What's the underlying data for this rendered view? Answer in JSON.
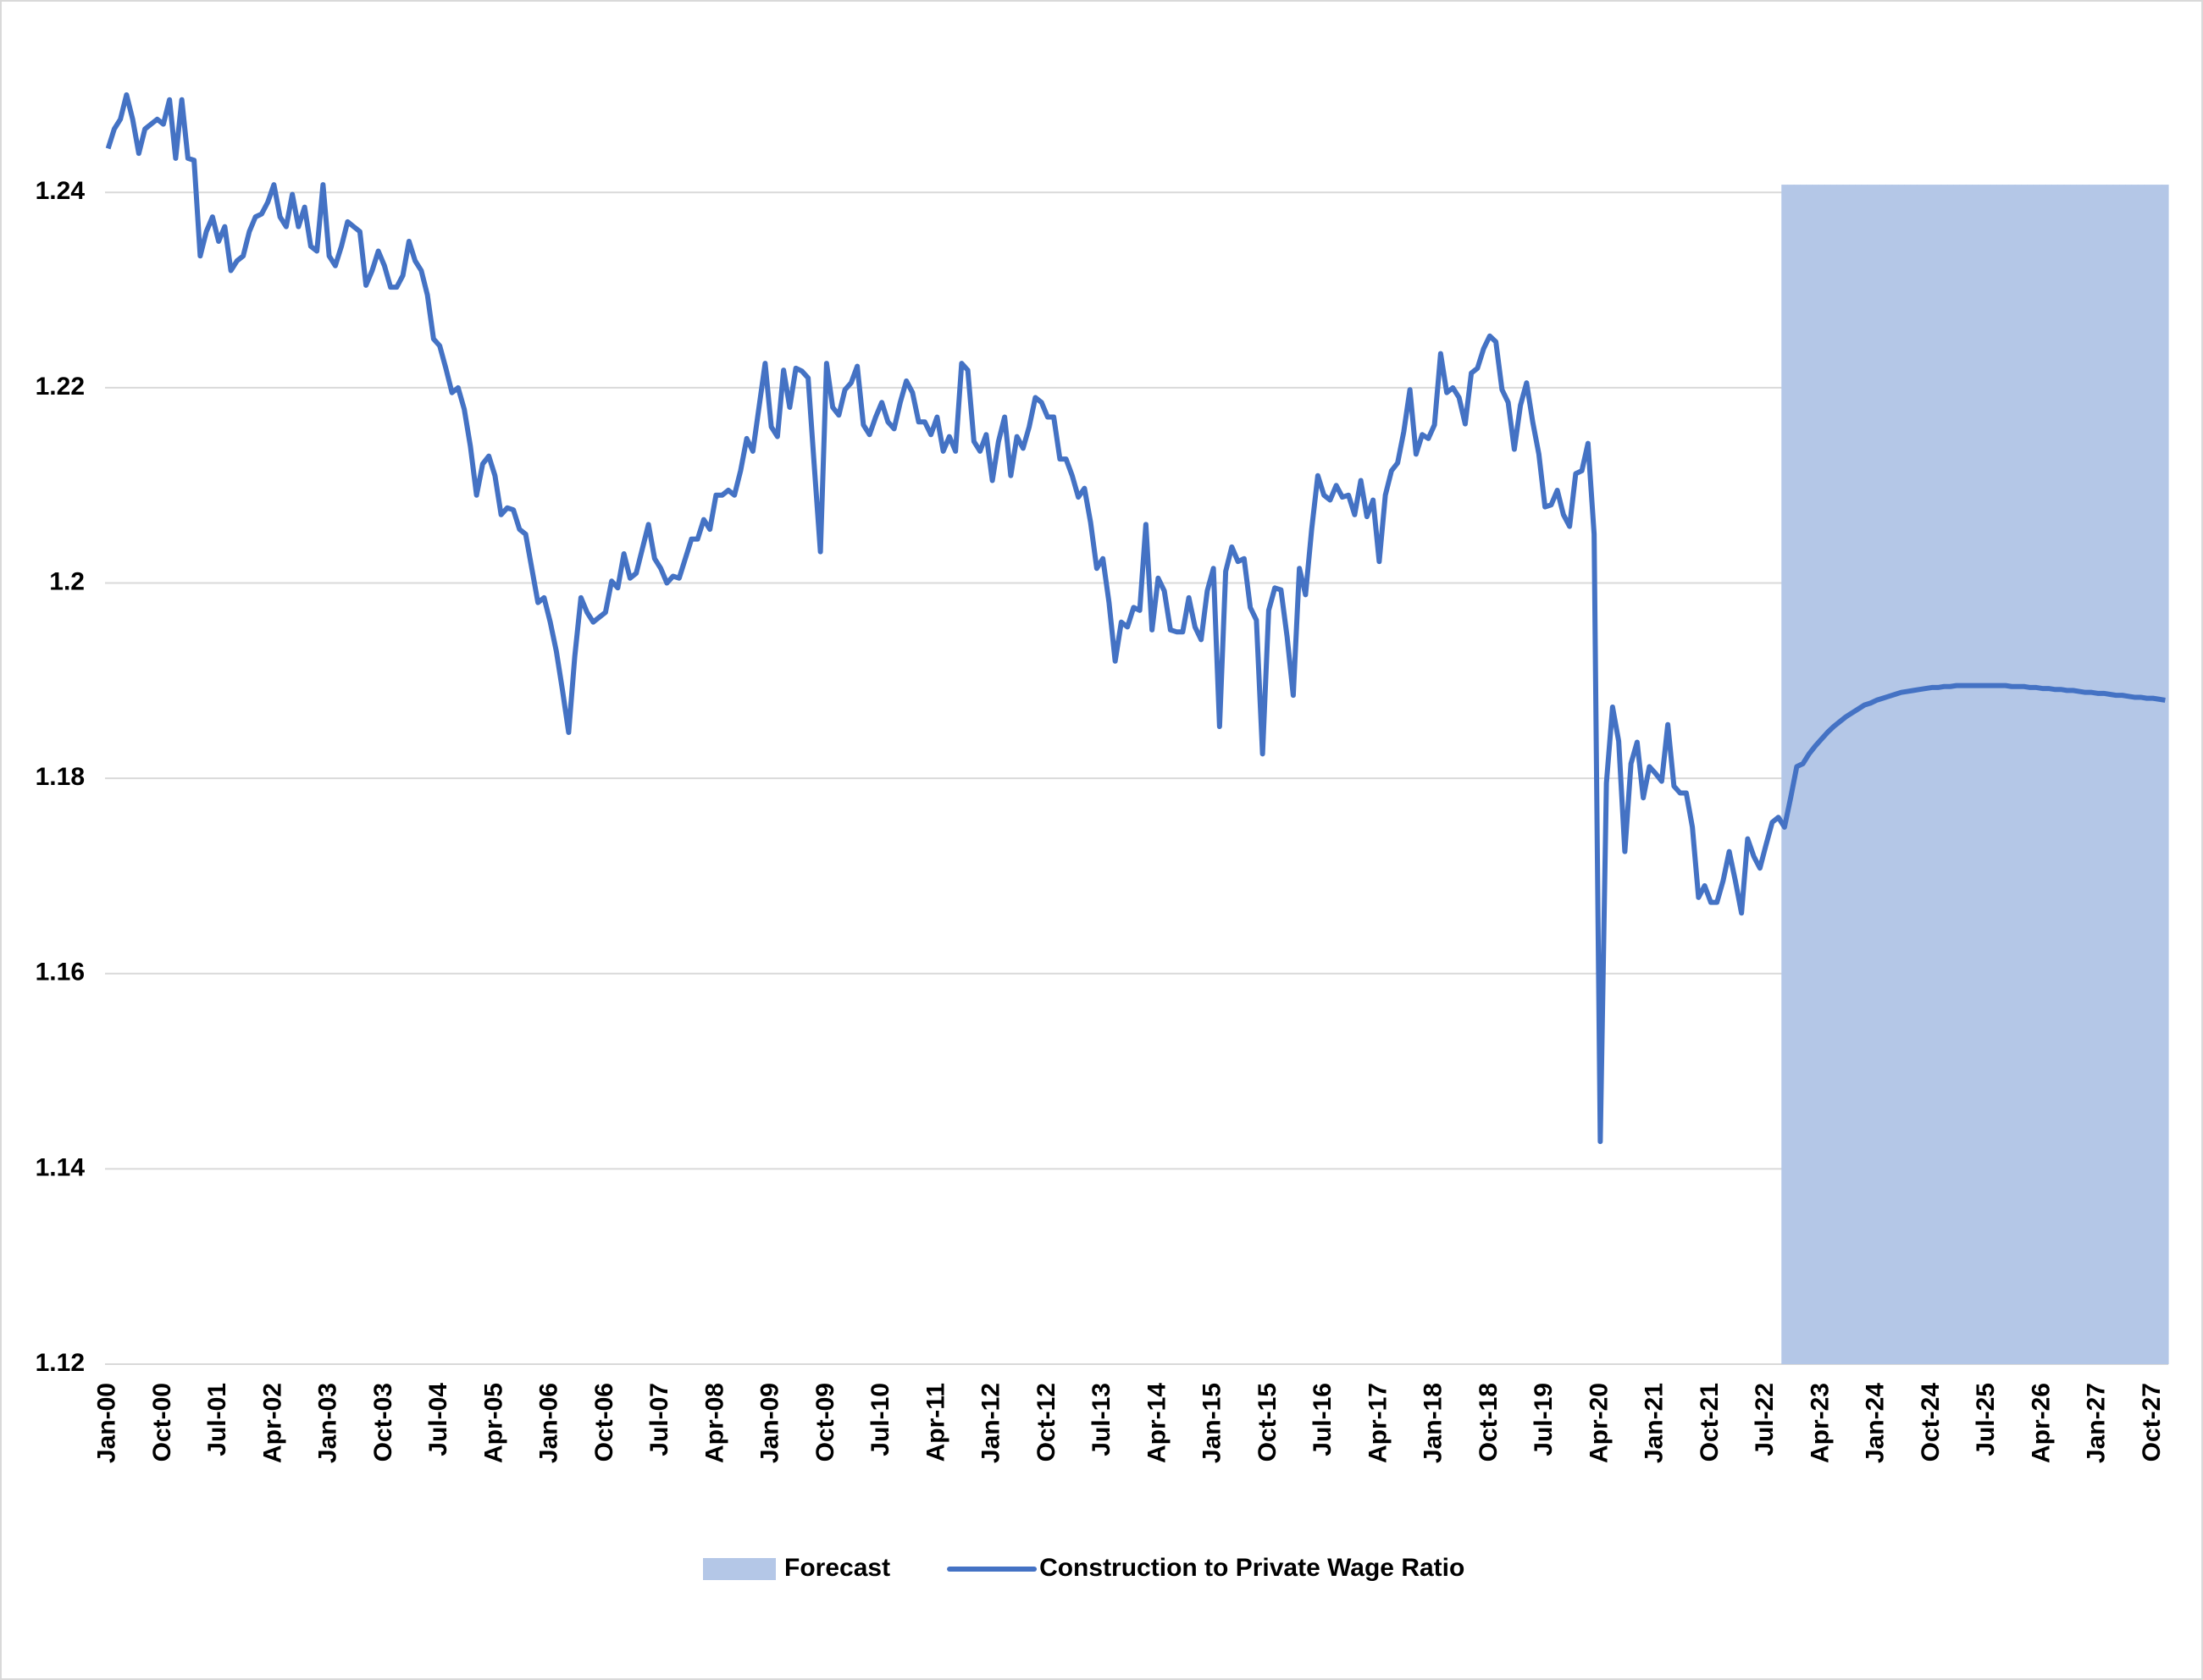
{
  "chart_data": {
    "type": "line",
    "categories": [
      "Jan-00",
      null,
      null,
      null,
      null,
      null,
      null,
      null,
      null,
      "Oct-00",
      null,
      null,
      null,
      null,
      null,
      null,
      null,
      null,
      "Jul-01",
      null,
      null,
      null,
      null,
      null,
      null,
      null,
      null,
      "Apr-02",
      null,
      null,
      null,
      null,
      null,
      null,
      null,
      null,
      "Jan-03",
      null,
      null,
      null,
      null,
      null,
      null,
      null,
      null,
      "Oct-03",
      null,
      null,
      null,
      null,
      null,
      null,
      null,
      null,
      "Jul-04",
      null,
      null,
      null,
      null,
      null,
      null,
      null,
      null,
      "Apr-05",
      null,
      null,
      null,
      null,
      null,
      null,
      null,
      null,
      "Jan-06",
      null,
      null,
      null,
      null,
      null,
      null,
      null,
      null,
      "Oct-06",
      null,
      null,
      null,
      null,
      null,
      null,
      null,
      null,
      "Jul-07",
      null,
      null,
      null,
      null,
      null,
      null,
      null,
      null,
      "Apr-08",
      null,
      null,
      null,
      null,
      null,
      null,
      null,
      null,
      "Jan-09",
      null,
      null,
      null,
      null,
      null,
      null,
      null,
      null,
      "Oct-09",
      null,
      null,
      null,
      null,
      null,
      null,
      null,
      null,
      "Jul-10",
      null,
      null,
      null,
      null,
      null,
      null,
      null,
      null,
      "Apr-11",
      null,
      null,
      null,
      null,
      null,
      null,
      null,
      null,
      "Jan-12",
      null,
      null,
      null,
      null,
      null,
      null,
      null,
      null,
      "Oct-12",
      null,
      null,
      null,
      null,
      null,
      null,
      null,
      null,
      "Jul-13",
      null,
      null,
      null,
      null,
      null,
      null,
      null,
      null,
      "Apr-14",
      null,
      null,
      null,
      null,
      null,
      null,
      null,
      null,
      "Jan-15",
      null,
      null,
      null,
      null,
      null,
      null,
      null,
      null,
      "Oct-15",
      null,
      null,
      null,
      null,
      null,
      null,
      null,
      null,
      "Jul-16",
      null,
      null,
      null,
      null,
      null,
      null,
      null,
      null,
      "Apr-17",
      null,
      null,
      null,
      null,
      null,
      null,
      null,
      null,
      "Jan-18",
      null,
      null,
      null,
      null,
      null,
      null,
      null,
      null,
      "Oct-18",
      null,
      null,
      null,
      null,
      null,
      null,
      null,
      null,
      "Jul-19",
      null,
      null,
      null,
      null,
      null,
      null,
      null,
      null,
      "Apr-20",
      null,
      null,
      null,
      null,
      null,
      null,
      null,
      null,
      "Jan-21",
      null,
      null,
      null,
      null,
      null,
      null,
      null,
      null,
      "Oct-21",
      null,
      null,
      null,
      null,
      null,
      null,
      null,
      null,
      "Jul-22",
      null,
      null,
      null,
      null,
      null,
      null,
      null,
      null,
      "Apr-23",
      null,
      null,
      null,
      null,
      null,
      null,
      null,
      null,
      "Jan-24",
      null,
      null,
      null,
      null,
      null,
      null,
      null,
      null,
      "Oct-24",
      null,
      null,
      null,
      null,
      null,
      null,
      null,
      null,
      "Jul-25",
      null,
      null,
      null,
      null,
      null,
      null,
      null,
      null,
      "Apr-26",
      null,
      null,
      null,
      null,
      null,
      null,
      null,
      null,
      "Jan-27",
      null,
      null,
      null,
      null,
      null,
      null,
      null,
      null,
      "Oct-27",
      null,
      null
    ],
    "series": [
      {
        "name": "Forecast",
        "type": "bar",
        "color": "#b4c7e7",
        "values": [
          null,
          null,
          null,
          null,
          null,
          null,
          null,
          null,
          null,
          null,
          null,
          null,
          null,
          null,
          null,
          null,
          null,
          null,
          null,
          null,
          null,
          null,
          null,
          null,
          null,
          null,
          null,
          null,
          null,
          null,
          null,
          null,
          null,
          null,
          null,
          null,
          null,
          null,
          null,
          null,
          null,
          null,
          null,
          null,
          null,
          null,
          null,
          null,
          null,
          null,
          null,
          null,
          null,
          null,
          null,
          null,
          null,
          null,
          null,
          null,
          null,
          null,
          null,
          null,
          null,
          null,
          null,
          null,
          null,
          null,
          null,
          null,
          null,
          null,
          null,
          null,
          null,
          null,
          null,
          null,
          null,
          null,
          null,
          null,
          null,
          null,
          null,
          null,
          null,
          null,
          null,
          null,
          null,
          null,
          null,
          null,
          null,
          null,
          null,
          null,
          null,
          null,
          null,
          null,
          null,
          null,
          null,
          null,
          null,
          null,
          null,
          null,
          null,
          null,
          null,
          null,
          null,
          null,
          null,
          null,
          null,
          null,
          null,
          null,
          null,
          null,
          null,
          null,
          null,
          null,
          null,
          null,
          null,
          null,
          null,
          null,
          null,
          null,
          null,
          null,
          null,
          null,
          null,
          null,
          null,
          null,
          null,
          null,
          null,
          null,
          null,
          null,
          null,
          null,
          null,
          null,
          null,
          null,
          null,
          null,
          null,
          null,
          null,
          null,
          null,
          null,
          null,
          null,
          null,
          null,
          null,
          null,
          null,
          null,
          null,
          null,
          null,
          null,
          null,
          null,
          null,
          null,
          null,
          null,
          null,
          null,
          null,
          null,
          null,
          null,
          null,
          null,
          null,
          null,
          null,
          null,
          null,
          null,
          null,
          null,
          null,
          null,
          null,
          null,
          null,
          null,
          null,
          null,
          null,
          null,
          null,
          null,
          null,
          null,
          null,
          null,
          null,
          null,
          null,
          null,
          null,
          null,
          null,
          null,
          null,
          null,
          null,
          null,
          null,
          null,
          null,
          null,
          null,
          null,
          null,
          null,
          null,
          null,
          null,
          null,
          null,
          null,
          null,
          null,
          null,
          null,
          null,
          null,
          null,
          null,
          null,
          null,
          null,
          null,
          null,
          null,
          null,
          null,
          null,
          null,
          null,
          null,
          null,
          null,
          null,
          null,
          null,
          null,
          null,
          null,
          null,
          null,
          null,
          1.2408,
          1.2408,
          1.2408,
          1.2408,
          1.2408,
          1.2408,
          1.2408,
          1.2408,
          1.2408,
          1.2408,
          1.2408,
          1.2408,
          1.2408,
          1.2408,
          1.2408,
          1.2408,
          1.2408,
          1.2408,
          1.2408,
          1.2408,
          1.2408,
          1.2408,
          1.2408,
          1.2408,
          1.2408,
          1.2408,
          1.2408,
          1.2408,
          1.2408,
          1.2408,
          1.2408,
          1.2408,
          1.2408,
          1.2408,
          1.2408,
          1.2408,
          1.2408,
          1.2408,
          1.2408,
          1.2408,
          1.2408,
          1.2408,
          1.2408,
          1.2408,
          1.2408,
          1.2408,
          1.2408,
          1.2408,
          1.2408,
          1.2408,
          1.2408,
          1.2408,
          1.2408,
          1.2408,
          1.2408,
          1.2408,
          1.2408,
          1.2408,
          1.2408,
          1.2408,
          1.2408,
          1.2408,
          1.2408
        ]
      },
      {
        "name": "Construction to Private Wage Ratio",
        "type": "line",
        "color": "#4472c4",
        "values": [
          1.2445,
          1.2465,
          1.2475,
          1.25,
          1.2475,
          1.244,
          1.2465,
          1.247,
          1.2475,
          1.247,
          1.2495,
          1.2435,
          1.2495,
          1.2435,
          1.2433,
          1.2335,
          1.236,
          1.2375,
          1.235,
          1.2365,
          1.232,
          1.233,
          1.2335,
          1.236,
          1.2375,
          1.2378,
          1.239,
          1.2408,
          1.2375,
          1.2365,
          1.2398,
          1.2365,
          1.2385,
          1.2345,
          1.234,
          1.2408,
          1.2335,
          1.2325,
          1.2345,
          1.237,
          1.2365,
          1.236,
          1.2305,
          1.232,
          1.234,
          1.2325,
          1.2303,
          1.2303,
          1.2315,
          1.235,
          1.233,
          1.232,
          1.2295,
          1.225,
          1.2243,
          1.222,
          1.2195,
          1.22,
          1.2178,
          1.214,
          1.209,
          1.2122,
          1.213,
          1.211,
          1.207,
          1.2077,
          1.2075,
          1.2055,
          1.205,
          1.2015,
          1.198,
          1.1985,
          1.196,
          1.193,
          1.189,
          1.1847,
          1.1925,
          1.1985,
          1.197,
          1.196,
          1.1965,
          1.197,
          1.2002,
          1.1995,
          1.203,
          1.2005,
          1.201,
          1.2035,
          1.206,
          1.2025,
          1.2015,
          1.2,
          1.2007,
          1.2005,
          1.2025,
          1.2045,
          1.2045,
          1.2065,
          1.2055,
          1.209,
          1.209,
          1.2095,
          1.209,
          1.2115,
          1.2148,
          1.2135,
          1.218,
          1.2225,
          1.216,
          1.215,
          1.2218,
          1.218,
          1.222,
          1.2217,
          1.221,
          1.212,
          1.2032,
          1.2225,
          1.218,
          1.2172,
          1.2198,
          1.2205,
          1.2222,
          1.2162,
          1.2152,
          1.217,
          1.2185,
          1.2165,
          1.2158,
          1.2185,
          1.2207,
          1.2195,
          1.2165,
          1.2165,
          1.2152,
          1.217,
          1.2135,
          1.215,
          1.2135,
          1.2225,
          1.2218,
          1.2145,
          1.2135,
          1.2152,
          1.2105,
          1.2145,
          1.217,
          1.211,
          1.215,
          1.2138,
          1.216,
          1.219,
          1.2185,
          1.217,
          1.217,
          1.2127,
          1.2127,
          1.211,
          1.2088,
          1.2097,
          1.2062,
          1.2015,
          1.2025,
          1.198,
          1.192,
          1.196,
          1.1955,
          1.1975,
          1.1972,
          1.206,
          1.1952,
          1.2005,
          1.1992,
          1.1952,
          1.195,
          1.195,
          1.1985,
          1.1955,
          1.1942,
          1.1992,
          1.2015,
          1.1853,
          1.2012,
          1.2037,
          1.2022,
          1.2025,
          1.1975,
          1.1962,
          1.1825,
          1.1972,
          1.1995,
          1.1993,
          1.1945,
          1.1885,
          1.2015,
          1.1988,
          1.2055,
          1.211,
          1.209,
          1.2085,
          1.21,
          1.2088,
          1.209,
          1.207,
          1.2105,
          1.2068,
          1.2085,
          1.2022,
          1.209,
          1.2115,
          1.2123,
          1.2155,
          1.2198,
          1.2132,
          1.2152,
          1.2148,
          1.2162,
          1.2235,
          1.2195,
          1.22,
          1.219,
          1.2163,
          1.2215,
          1.222,
          1.224,
          1.2253,
          1.2247,
          1.2198,
          1.2185,
          1.2137,
          1.2182,
          1.2205,
          1.2165,
          1.2132,
          1.2078,
          1.208,
          1.2095,
          1.207,
          1.2058,
          1.2112,
          1.2115,
          1.2143,
          1.205,
          1.1428,
          1.1795,
          1.1873,
          1.1838,
          1.1725,
          1.1815,
          1.1837,
          1.178,
          1.1812,
          1.1805,
          1.1797,
          1.1855,
          1.1792,
          1.1785,
          1.1785,
          1.175,
          1.1678,
          1.169,
          1.1673,
          1.1673,
          1.1695,
          1.1725,
          1.1695,
          1.1662,
          1.1738,
          1.172,
          1.1708,
          1.1732,
          1.1755,
          1.176,
          1.175,
          1.178,
          1.1812,
          1.1815,
          1.1825,
          1.1833,
          1.184,
          1.1847,
          1.1853,
          1.1858,
          1.1863,
          1.1867,
          1.1871,
          1.1875,
          1.1877,
          1.188,
          1.1882,
          1.1884,
          1.1886,
          1.1888,
          1.1889,
          1.189,
          1.1891,
          1.1892,
          1.1893,
          1.1893,
          1.1894,
          1.1894,
          1.1895,
          1.1895,
          1.1895,
          1.1895,
          1.1895,
          1.1895,
          1.1895,
          1.1895,
          1.1895,
          1.1894,
          1.1894,
          1.1894,
          1.1893,
          1.1893,
          1.1892,
          1.1892,
          1.1891,
          1.1891,
          1.189,
          1.189,
          1.1889,
          1.1888,
          1.1888,
          1.1887,
          1.1887,
          1.1886,
          1.1885,
          1.1885,
          1.1884,
          1.1883,
          1.1883,
          1.1882,
          1.1882,
          1.1881,
          1.188
        ]
      }
    ],
    "ylim": [
      1.12,
      1.25
    ],
    "yticks": [
      1.12,
      1.14,
      1.16,
      1.18,
      1.2,
      1.22,
      1.24
    ],
    "grid": true,
    "legend": "bottom"
  }
}
